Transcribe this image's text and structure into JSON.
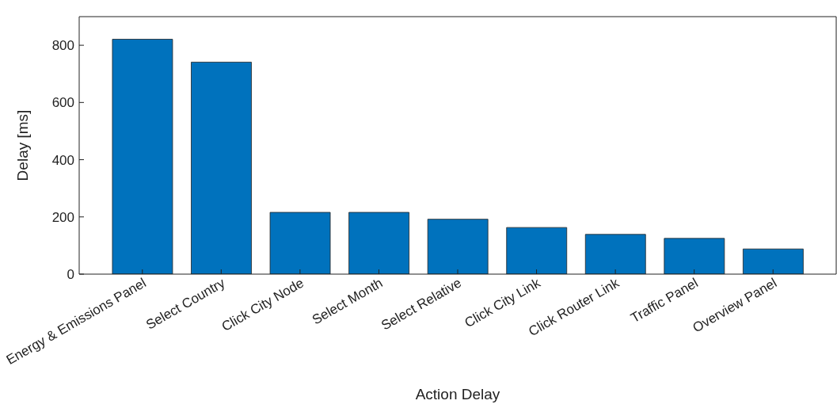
{
  "chart_data": {
    "type": "bar",
    "xlabel": "Action Delay",
    "ylabel": "Delay [ms]",
    "categories": [
      "Energy & Emissions Panel",
      "Select Country",
      "Click City Node",
      "Select Month",
      "Select Relative",
      "Click City Link",
      "Click Router Link",
      "Traffic Panel",
      "Overview Panel"
    ],
    "values": [
      821,
      741,
      216,
      216,
      192,
      163,
      139,
      125,
      88
    ],
    "color": "#0072bd",
    "ylim": [
      0,
      900
    ],
    "yticks": [
      0,
      200,
      400,
      600,
      800
    ],
    "grid": false
  }
}
